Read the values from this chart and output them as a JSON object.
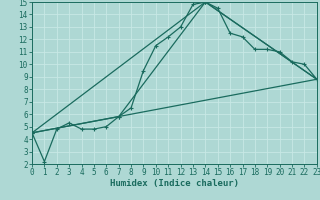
{
  "xlabel": "Humidex (Indice chaleur)",
  "xlim": [
    0,
    23
  ],
  "ylim": [
    2,
    15
  ],
  "xticks": [
    0,
    1,
    2,
    3,
    4,
    5,
    6,
    7,
    8,
    9,
    10,
    11,
    12,
    13,
    14,
    15,
    16,
    17,
    18,
    19,
    20,
    21,
    22,
    23
  ],
  "yticks": [
    2,
    3,
    4,
    5,
    6,
    7,
    8,
    9,
    10,
    11,
    12,
    13,
    14,
    15
  ],
  "bg_color": "#aed8d4",
  "grid_color": "#c8e8e5",
  "line_color": "#1a6b5e",
  "series": [
    {
      "x": [
        0,
        1,
        2,
        3,
        4,
        5,
        6,
        7,
        8,
        9,
        10,
        11,
        12,
        13,
        14,
        15,
        16,
        17,
        18,
        19,
        20,
        21,
        22,
        23
      ],
      "y": [
        4.5,
        2.2,
        4.8,
        5.3,
        4.8,
        4.8,
        5.0,
        5.8,
        6.5,
        9.5,
        11.5,
        12.2,
        13.0,
        14.8,
        15.0,
        14.5,
        12.5,
        12.2,
        11.2,
        11.2,
        11.0,
        10.2,
        10.0,
        8.8
      ],
      "marker": true
    },
    {
      "x": [
        0,
        7,
        14,
        23
      ],
      "y": [
        4.5,
        5.8,
        15.0,
        8.8
      ],
      "marker": true
    },
    {
      "x": [
        0,
        14,
        23
      ],
      "y": [
        4.5,
        15.0,
        8.8
      ],
      "marker": true
    },
    {
      "x": [
        0,
        23
      ],
      "y": [
        4.5,
        8.8
      ],
      "marker": false
    }
  ],
  "marker_symbol": "+",
  "markersize": 3.5,
  "linewidth": 0.9,
  "tick_fontsize": 5.5,
  "xlabel_fontsize": 6.5
}
